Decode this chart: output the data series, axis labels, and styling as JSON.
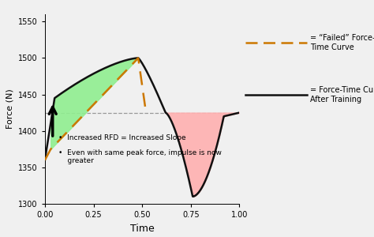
{
  "title": "",
  "xlabel": "Time",
  "ylabel": "Force (N)",
  "xlim": [
    0.0,
    1.0
  ],
  "ylim": [
    1300,
    1560
  ],
  "yticks": [
    1300,
    1350,
    1400,
    1450,
    1500,
    1550
  ],
  "xticks": [
    0.0,
    0.25,
    0.5,
    0.75,
    1.0
  ],
  "horizontal_line_y": 1425,
  "horizontal_line_color": "#999999",
  "bg_color": "#f0f0f0",
  "green_fill_color": "#90ee90",
  "red_fill_color": "#ffb0b0",
  "solid_line_color": "#111111",
  "dashed_line_color": "#cc7700",
  "legend_text_1": "= “Failed” Force-\nTime Curve",
  "legend_text_2": "= Force-Time Curve\nAfter Training",
  "bullet_1": "•  Increased RFD = Increased Slope",
  "bullet_2": "•  Even with same peak force, impulse is now\n    greater"
}
